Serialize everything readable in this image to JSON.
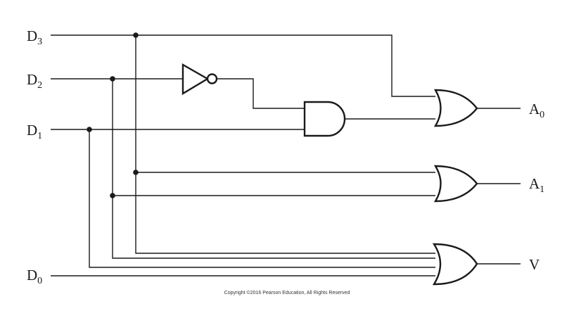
{
  "inputs": {
    "d3": {
      "letter": "D",
      "sub": "3"
    },
    "d2": {
      "letter": "D",
      "sub": "2"
    },
    "d1": {
      "letter": "D",
      "sub": "1"
    },
    "d0": {
      "letter": "D",
      "sub": "0"
    }
  },
  "outputs": {
    "a0": {
      "letter": "A",
      "sub": "0"
    },
    "a1": {
      "letter": "A",
      "sub": "1"
    },
    "v": {
      "letter": "V"
    }
  },
  "copyright": "Copyright ©2016 Pearson Education, All Rights Reserved"
}
